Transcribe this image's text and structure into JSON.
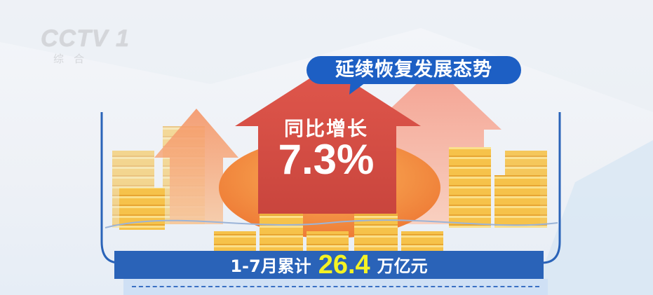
{
  "logo": {
    "channel": "CCTV",
    "number": "1",
    "subtitle": "综合"
  },
  "headline": "延续恢复发展态势",
  "arrow": {
    "label": "同比增长",
    "value": "7.3%"
  },
  "banner": {
    "prefix": "1-7月累计",
    "value": "26.4",
    "suffix": "万亿元"
  },
  "colors": {
    "blue": "#1d5fc4",
    "banner_blue": "#2a63b8",
    "highlight": "#f4f224",
    "arrow_red": "#d9534a",
    "coin": "#f6c24a"
  }
}
